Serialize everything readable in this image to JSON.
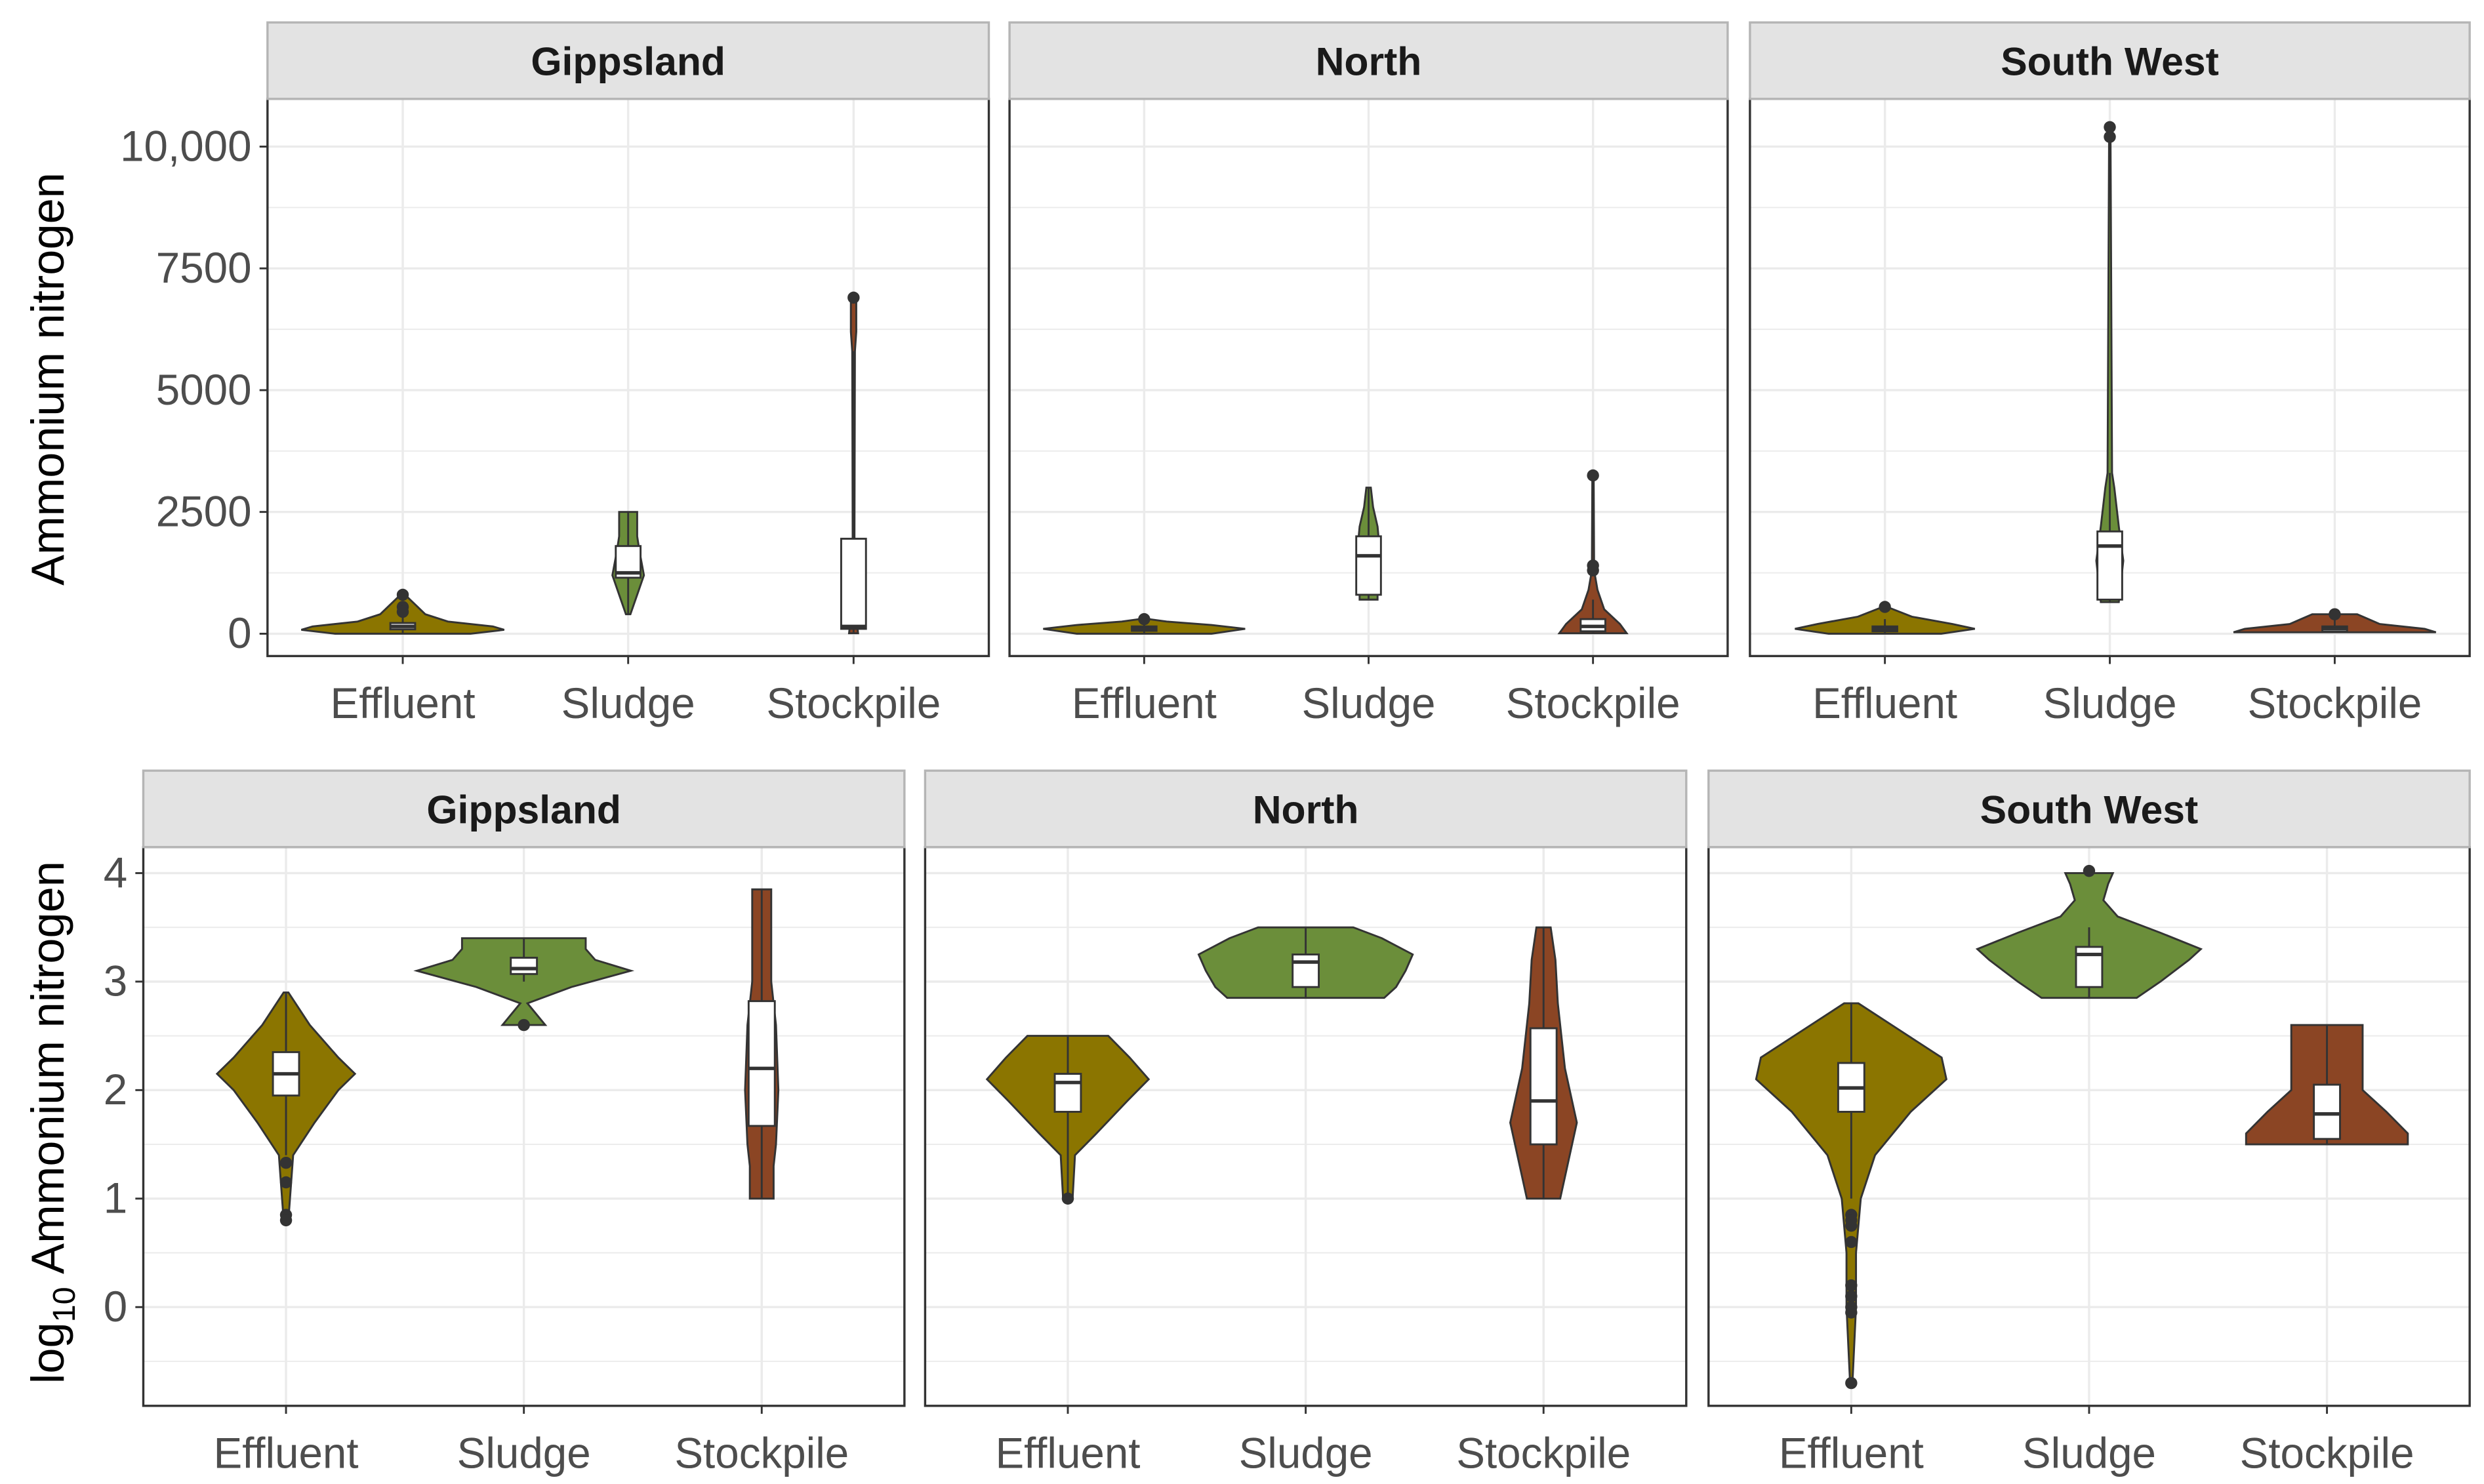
{
  "colors": {
    "Effluent": "#8B7500",
    "Sludge": "#6B8E3A",
    "Stockpile": "#8B4524",
    "strip_fill": "#E3E3E3",
    "strip_border": "#B5B5B5",
    "grid": "#EBEBEB",
    "box_fill": "#FFFFFF",
    "outline": "#333333"
  },
  "chart_data": [
    {
      "type": "violin",
      "ylabel": "Ammonium nitrogen",
      "ylim": [
        -458,
        10980
      ],
      "yticks": [
        0,
        2500,
        5000,
        7500,
        10000
      ],
      "ytick_labels": [
        "0",
        "2500",
        "5000",
        "7500",
        "10,000"
      ],
      "yminor": [
        1250,
        3750,
        6250,
        8750
      ],
      "categories": [
        "Effluent",
        "Sludge",
        "Stockpile"
      ],
      "grid": true,
      "panels": [
        {
          "facet": "Gippsland",
          "violins": [
            {
              "category": "Effluent",
              "density": [
                [
                  0,
                  0.3
                ],
                [
                  80,
                  0.45
                ],
                [
                  150,
                  0.4
                ],
                [
                  250,
                  0.2
                ],
                [
                  400,
                  0.1
                ],
                [
                  800,
                  0.01
                ]
              ],
              "box": [
                0,
                90,
                150,
                220,
                400
              ],
              "outliers": [
                800,
                550,
                450
              ]
            },
            {
              "category": "Sludge",
              "density": [
                [
                  400,
                  0.01
                ],
                [
                  800,
                  0.04
                ],
                [
                  1200,
                  0.07
                ],
                [
                  1700,
                  0.05
                ],
                [
                  2000,
                  0.04
                ],
                [
                  2500,
                  0.04
                ]
              ],
              "box": [
                400,
                1150,
                1250,
                1800,
                2500
              ],
              "outliers": []
            },
            {
              "category": "Stockpile",
              "density": [
                [
                  10,
                  0.02
                ],
                [
                  500,
                  0.008
                ],
                [
                  2000,
                  0.004
                ],
                [
                  5800,
                  0.006
                ],
                [
                  6200,
                  0.012
                ],
                [
                  6900,
                  0.012
                ]
              ],
              "box": [
                10,
                100,
                150,
                1950,
                5800
              ],
              "outliers": [
                6900
              ]
            }
          ]
        },
        {
          "facet": "North",
          "violins": [
            {
              "category": "Effluent",
              "density": [
                [
                  0,
                  0.3
                ],
                [
                  100,
                  0.45
                ],
                [
                  180,
                  0.3
                ],
                [
                  250,
                  0.1
                ],
                [
                  300,
                  0.02
                ]
              ],
              "box": [
                0,
                60,
                100,
                150,
                300
              ],
              "outliers": [
                300
              ]
            },
            {
              "category": "Sludge",
              "density": [
                [
                  700,
                  0.04
                ],
                [
                  1200,
                  0.04
                ],
                [
                  1700,
                  0.05
                ],
                [
                  2200,
                  0.04
                ],
                [
                  2600,
                  0.02
                ],
                [
                  3000,
                  0.01
                ]
              ],
              "box": [
                700,
                800,
                1600,
                2000,
                3000
              ],
              "outliers": []
            },
            {
              "category": "Stockpile",
              "density": [
                [
                  10,
                  0.15
                ],
                [
                  200,
                  0.12
                ],
                [
                  500,
                  0.05
                ],
                [
                  900,
                  0.02
                ],
                [
                  1300,
                  0.005
                ],
                [
                  3250,
                  0.003
                ]
              ],
              "box": [
                10,
                50,
                150,
                300,
                700
              ],
              "outliers": [
                1300,
                1400,
                3250
              ]
            }
          ]
        },
        {
          "facet": "South West",
          "violins": [
            {
              "category": "Effluent",
              "density": [
                [
                  0,
                  0.25
                ],
                [
                  100,
                  0.4
                ],
                [
                  200,
                  0.3
                ],
                [
                  350,
                  0.12
                ],
                [
                  550,
                  0.01
                ]
              ],
              "box": [
                0,
                50,
                100,
                150,
                300
              ],
              "outliers": [
                550
              ]
            },
            {
              "category": "Sludge",
              "density": [
                [
                  650,
                  0.04
                ],
                [
                  1500,
                  0.06
                ],
                [
                  2200,
                  0.04
                ],
                [
                  3000,
                  0.02
                ],
                [
                  3300,
                  0.01
                ],
                [
                  10400,
                  0.003
                ]
              ],
              "box": [
                650,
                700,
                1800,
                2100,
                3300
              ],
              "outliers": [
                10200,
                10400
              ]
            },
            {
              "category": "Stockpile",
              "density": [
                [
                  30,
                  0.45
                ],
                [
                  100,
                  0.4
                ],
                [
                  200,
                  0.2
                ],
                [
                  300,
                  0.15
                ],
                [
                  400,
                  0.1
                ]
              ],
              "box": [
                30,
                40,
                100,
                150,
                400
              ],
              "outliers": [
                400
              ]
            }
          ]
        }
      ]
    },
    {
      "type": "violin",
      "ylabel_prefix": "log",
      "ylabel_sub": "10",
      "ylabel": "Ammonium nitrogen",
      "ylim": [
        -0.91,
        4.24
      ],
      "yticks": [
        0,
        1,
        2,
        3,
        4
      ],
      "ytick_labels": [
        "0",
        "1",
        "2",
        "3",
        "4"
      ],
      "yminor": [
        -0.5,
        0.5,
        1.5,
        2.5,
        3.5
      ],
      "categories": [
        "Effluent",
        "Sludge",
        "Stockpile"
      ],
      "grid": true,
      "panels": [
        {
          "facet": "Gippsland",
          "violins": [
            {
              "category": "Effluent",
              "density": [
                [
                  0.8,
                  0.01
                ],
                [
                  1.4,
                  0.03
                ],
                [
                  1.7,
                  0.12
                ],
                [
                  2.0,
                  0.22
                ],
                [
                  2.15,
                  0.29
                ],
                [
                  2.3,
                  0.22
                ],
                [
                  2.6,
                  0.1
                ],
                [
                  2.9,
                  0.01
                ]
              ],
              "box": [
                1.4,
                1.95,
                2.15,
                2.35,
                2.9
              ],
              "outliers": [
                1.33,
                1.15,
                0.85,
                0.8
              ]
            },
            {
              "category": "Sludge",
              "density": [
                [
                  2.6,
                  0.09
                ],
                [
                  2.68,
                  0.06
                ],
                [
                  2.8,
                  0.015
                ],
                [
                  2.95,
                  0.2
                ],
                [
                  3.1,
                  0.45
                ],
                [
                  3.2,
                  0.3
                ],
                [
                  3.3,
                  0.26
                ],
                [
                  3.4,
                  0.26
                ]
              ],
              "box": [
                3.0,
                3.07,
                3.12,
                3.22,
                3.4
              ],
              "outliers": [
                2.6
              ]
            },
            {
              "category": "Stockpile",
              "density": [
                [
                  1.0,
                  0.05
                ],
                [
                  1.3,
                  0.05
                ],
                [
                  1.5,
                  0.06
                ],
                [
                  2.0,
                  0.07
                ],
                [
                  2.6,
                  0.06
                ],
                [
                  3.0,
                  0.04
                ],
                [
                  3.85,
                  0.04
                ]
              ],
              "box": [
                1.0,
                1.67,
                2.2,
                2.82,
                3.85
              ],
              "outliers": []
            }
          ]
        },
        {
          "facet": "North",
          "violins": [
            {
              "category": "Effluent",
              "density": [
                [
                  1.0,
                  0.02
                ],
                [
                  1.4,
                  0.03
                ],
                [
                  1.6,
                  0.12
                ],
                [
                  1.9,
                  0.25
                ],
                [
                  2.1,
                  0.34
                ],
                [
                  2.3,
                  0.26
                ],
                [
                  2.5,
                  0.17
                ]
              ],
              "box": [
                1.0,
                1.8,
                2.07,
                2.15,
                2.5
              ],
              "outliers": [
                1.0
              ]
            },
            {
              "category": "Sludge",
              "density": [
                [
                  2.85,
                  0.33
                ],
                [
                  2.95,
                  0.38
                ],
                [
                  3.1,
                  0.42
                ],
                [
                  3.25,
                  0.45
                ],
                [
                  3.4,
                  0.32
                ],
                [
                  3.5,
                  0.2
                ]
              ],
              "box": [
                2.85,
                2.95,
                3.18,
                3.25,
                3.5
              ],
              "outliers": []
            },
            {
              "category": "Stockpile",
              "density": [
                [
                  1.0,
                  0.07
                ],
                [
                  1.3,
                  0.1
                ],
                [
                  1.7,
                  0.14
                ],
                [
                  2.2,
                  0.09
                ],
                [
                  2.8,
                  0.06
                ],
                [
                  3.2,
                  0.05
                ],
                [
                  3.5,
                  0.03
                ]
              ],
              "box": [
                1.0,
                1.5,
                1.9,
                2.57,
                3.5
              ],
              "outliers": []
            }
          ]
        },
        {
          "facet": "South West",
          "violins": [
            {
              "category": "Effluent",
              "density": [
                [
                  -0.7,
                  0.005
                ],
                [
                  0.0,
                  0.02
                ],
                [
                  0.5,
                  0.02
                ],
                [
                  1.0,
                  0.04
                ],
                [
                  1.4,
                  0.1
                ],
                [
                  1.8,
                  0.25
                ],
                [
                  2.1,
                  0.4
                ],
                [
                  2.3,
                  0.38
                ],
                [
                  2.6,
                  0.17
                ],
                [
                  2.8,
                  0.03
                ]
              ],
              "box": [
                1.0,
                1.8,
                2.02,
                2.25,
                2.8
              ],
              "outliers": [
                0.85,
                0.8,
                0.75,
                0.6,
                0.2,
                0.1,
                0.0,
                -0.05,
                -0.7
              ]
            },
            {
              "category": "Sludge",
              "density": [
                [
                  2.85,
                  0.2
                ],
                [
                  3.0,
                  0.3
                ],
                [
                  3.2,
                  0.42
                ],
                [
                  3.3,
                  0.47
                ],
                [
                  3.45,
                  0.3
                ],
                [
                  3.6,
                  0.12
                ],
                [
                  3.75,
                  0.06
                ],
                [
                  3.9,
                  0.08
                ],
                [
                  4.0,
                  0.1
                ]
              ],
              "box": [
                2.85,
                2.95,
                3.25,
                3.32,
                3.5
              ],
              "outliers": [
                4.02
              ]
            },
            {
              "category": "Stockpile",
              "density": [
                [
                  1.5,
                  0.34
                ],
                [
                  1.6,
                  0.34
                ],
                [
                  1.8,
                  0.25
                ],
                [
                  2.0,
                  0.15
                ],
                [
                  2.3,
                  0.15
                ],
                [
                  2.6,
                  0.15
                ]
              ],
              "box": [
                1.5,
                1.55,
                1.78,
                2.05,
                2.6
              ],
              "outliers": []
            }
          ]
        }
      ]
    }
  ]
}
